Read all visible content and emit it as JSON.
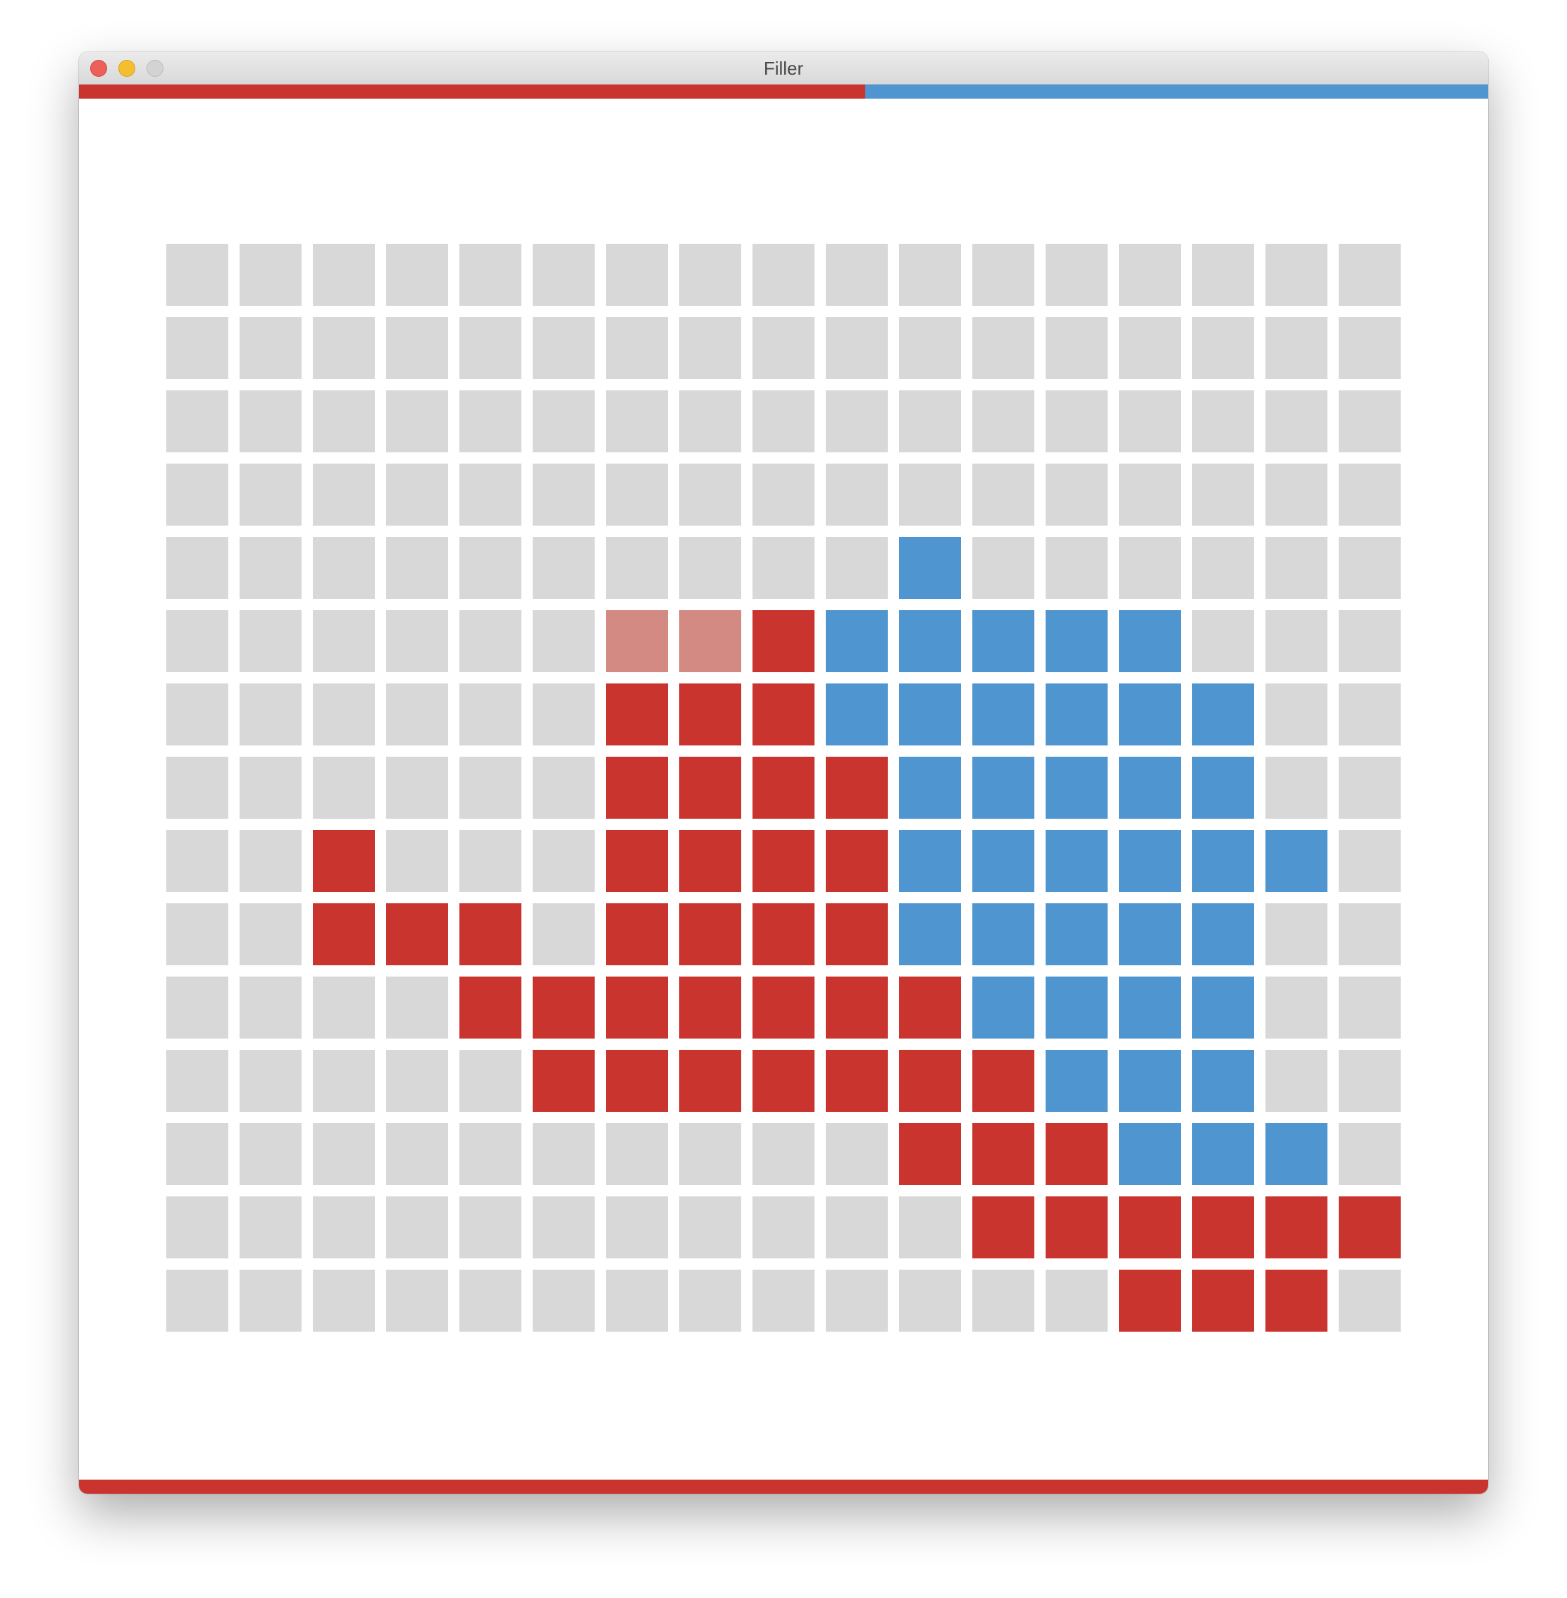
{
  "window": {
    "title": "Filler",
    "buttons": [
      "close",
      "minimize",
      "zoom"
    ]
  },
  "score": {
    "red_share": 0.558,
    "blue_share": 0.442
  },
  "turn": {
    "player": "red"
  },
  "colors": {
    "red": "#c9342f",
    "blue": "#4f96d0",
    "empty": "#d8d8d8",
    "preview": "#d38a83"
  },
  "board": {
    "columns": 17,
    "rows": 15,
    "legend": {
      "e": "empty",
      "r": "red",
      "b": "blue",
      "p": "red-preview"
    },
    "grid": [
      "eeeeeeeeeeeeeeeee",
      "eeeeeeeeeeeeeeeee",
      "eeeeeeeeeeeeeeeee",
      "eeeeeeeeeeeeeeeee",
      "eeeeeeeeeebeeeeee",
      "eeeeeepprbbbbbeee",
      "eeeeeerrrbbbbbbee",
      "eeeeeerrrrbbbbbee",
      "eereeerrrrbbbbbbe",
      "eerrrerrrrbbbbbee",
      "eeeerrrrrrrbbbbee",
      "eeeeerrrrrrrbbbee",
      "eeeeeeeeeerrrbbbe",
      "eeeeeeeeeeerrrrrr",
      "eeeeeeeeeeeeerrre"
    ]
  }
}
